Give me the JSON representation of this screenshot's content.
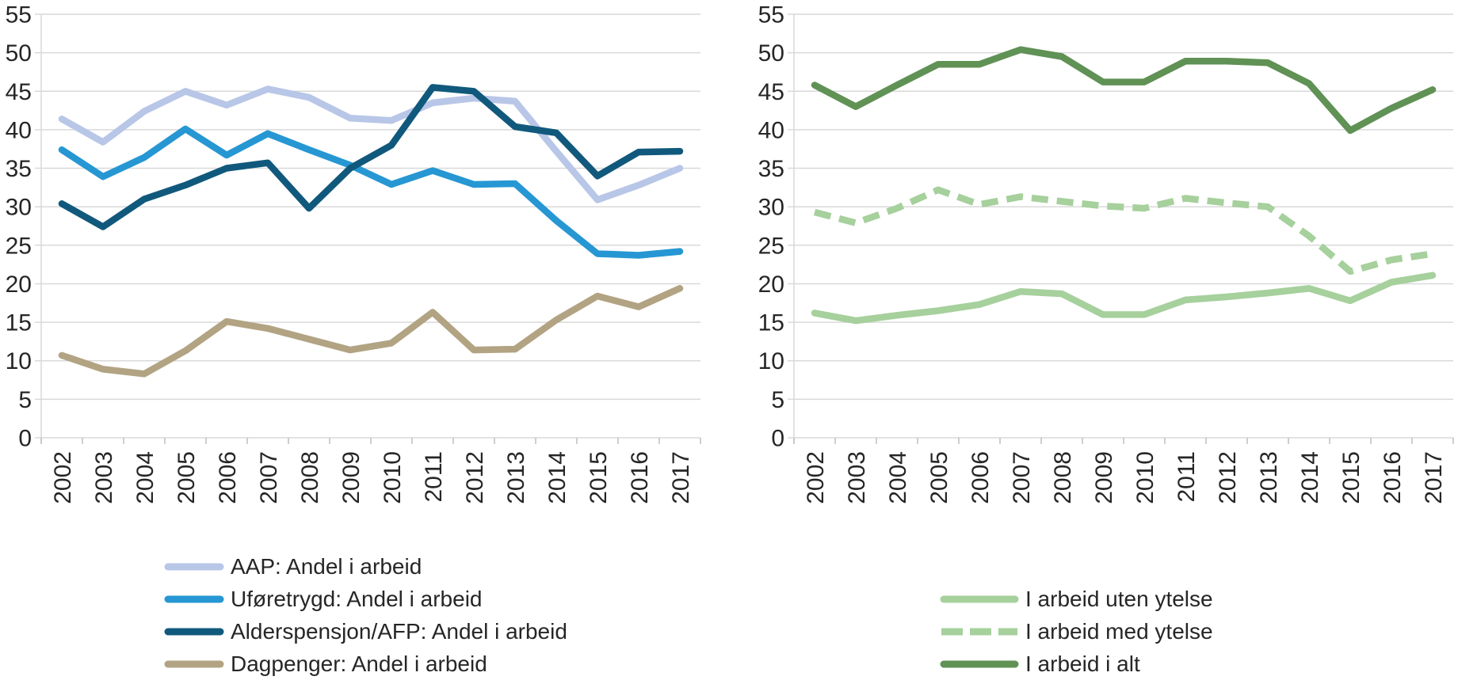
{
  "styles": {
    "background": "#ffffff",
    "text_color": "#262626",
    "grid_color": "#d9d9d9",
    "tick_color": "#bfbfbf"
  },
  "chart_data": [
    {
      "type": "line",
      "title": "",
      "xlabel": "",
      "ylabel": "",
      "x": [
        "2002",
        "2003",
        "2004",
        "2005",
        "2006",
        "2007",
        "2008",
        "2009",
        "2010",
        "2011",
        "2012",
        "2013",
        "2014",
        "2015",
        "2016",
        "2017"
      ],
      "ylim": [
        0,
        55
      ],
      "yticks": [
        0,
        5,
        10,
        15,
        20,
        25,
        30,
        35,
        40,
        45,
        50,
        55
      ],
      "grid": true,
      "legend_position": "below-left",
      "series": [
        {
          "name": "AAP: Andel i arbeid",
          "color": "#b8c6e7",
          "dash": false,
          "values": [
            41.4,
            38.4,
            42.4,
            45.0,
            43.2,
            45.3,
            44.2,
            41.5,
            41.2,
            43.5,
            44.1,
            43.7,
            37.2,
            30.9,
            32.8,
            35.0
          ]
        },
        {
          "name": "Uføretrygd: Andel i arbeid",
          "color": "#2697d3",
          "dash": false,
          "values": [
            37.4,
            33.9,
            36.4,
            40.1,
            36.7,
            39.5,
            37.4,
            35.4,
            32.9,
            34.7,
            32.9,
            33.0,
            28.2,
            23.9,
            23.7,
            24.2
          ]
        },
        {
          "name": "Alderspensjon/AFP: Andel i arbeid",
          "color": "#11597c",
          "dash": false,
          "values": [
            30.4,
            27.4,
            31.0,
            32.8,
            35.0,
            35.7,
            29.8,
            35.0,
            38.0,
            45.5,
            45.0,
            40.4,
            39.6,
            34.0,
            37.1,
            37.2
          ]
        },
        {
          "name": "Dagpenger: Andel i arbeid",
          "color": "#b2a383",
          "dash": false,
          "values": [
            10.7,
            8.9,
            8.3,
            11.3,
            15.1,
            14.2,
            12.8,
            11.4,
            12.3,
            16.3,
            11.4,
            11.5,
            15.3,
            18.4,
            17.0,
            19.4
          ]
        }
      ]
    },
    {
      "type": "line",
      "title": "",
      "xlabel": "",
      "ylabel": "",
      "x": [
        "2002",
        "2003",
        "2004",
        "2005",
        "2006",
        "2007",
        "2008",
        "2009",
        "2010",
        "2011",
        "2012",
        "2013",
        "2014",
        "2015",
        "2016",
        "2017"
      ],
      "ylim": [
        0,
        55
      ],
      "yticks": [
        0,
        5,
        10,
        15,
        20,
        25,
        30,
        35,
        40,
        45,
        50,
        55
      ],
      "grid": true,
      "legend_position": "below-center",
      "series": [
        {
          "name": "I arbeid uten ytelse",
          "color": "#a6d09c",
          "dash": false,
          "values": [
            16.2,
            15.2,
            15.9,
            16.5,
            17.3,
            19.0,
            18.7,
            16.0,
            16.0,
            17.9,
            18.3,
            18.8,
            19.4,
            17.8,
            20.2,
            21.1
          ]
        },
        {
          "name": "I arbeid med ytelse",
          "color": "#a6d09c",
          "dash": true,
          "values": [
            29.3,
            27.9,
            29.8,
            32.2,
            30.3,
            31.3,
            30.7,
            30.1,
            29.8,
            31.1,
            30.5,
            30.0,
            26.2,
            21.6,
            23.1,
            23.9
          ]
        },
        {
          "name": "I arbeid i alt",
          "color": "#609155",
          "dash": false,
          "values": [
            45.8,
            43.0,
            45.8,
            48.5,
            48.5,
            50.4,
            49.5,
            46.2,
            46.2,
            48.9,
            48.9,
            48.7,
            46.0,
            39.9,
            42.8,
            45.2
          ]
        }
      ]
    }
  ]
}
